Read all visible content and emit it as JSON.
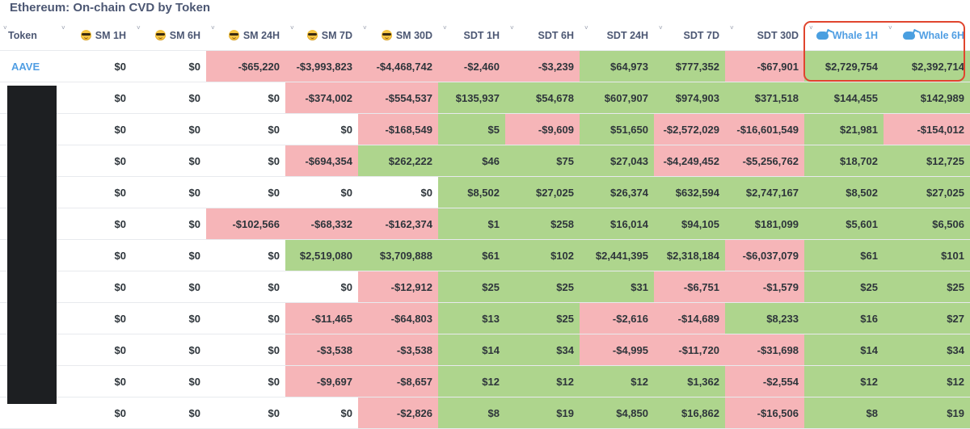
{
  "title": "Ethereum: On-chain CVD by Token",
  "colors": {
    "positive": "#aed58d",
    "negative": "#f6b5b8",
    "link": "#509ee3",
    "highlight": "#e0452e"
  },
  "columns": [
    {
      "label": "Token",
      "icon": ""
    },
    {
      "label": "SM 1H",
      "icon": "smart-money-face-icon"
    },
    {
      "label": "SM 6H",
      "icon": "smart-money-face-icon"
    },
    {
      "label": "SM 24H",
      "icon": "smart-money-face-icon"
    },
    {
      "label": "SM 7D",
      "icon": "smart-money-face-icon"
    },
    {
      "label": "SM 30D",
      "icon": "smart-money-face-icon"
    },
    {
      "label": "SDT 1H",
      "icon": ""
    },
    {
      "label": "SDT 6H",
      "icon": ""
    },
    {
      "label": "SDT 24H",
      "icon": ""
    },
    {
      "label": "SDT 7D",
      "icon": ""
    },
    {
      "label": "SDT 30D",
      "icon": ""
    },
    {
      "label": "Whale 1H",
      "icon": "whale-icon"
    },
    {
      "label": "Whale 6H",
      "icon": "whale-icon"
    }
  ],
  "rows": [
    {
      "token": "AAVE",
      "cells": [
        {
          "v": "$0"
        },
        {
          "v": "$0"
        },
        {
          "v": "-$65,220",
          "c": "neg"
        },
        {
          "v": "-$3,993,823",
          "c": "neg"
        },
        {
          "v": "-$4,468,742",
          "c": "neg"
        },
        {
          "v": "-$2,460",
          "c": "neg"
        },
        {
          "v": "-$3,239",
          "c": "neg"
        },
        {
          "v": "$64,973",
          "c": "pos"
        },
        {
          "v": "$777,352",
          "c": "pos"
        },
        {
          "v": "-$67,901",
          "c": "neg"
        },
        {
          "v": "$2,729,754",
          "c": "pos"
        },
        {
          "v": "$2,392,714",
          "c": "pos"
        }
      ]
    },
    {
      "token": "",
      "cells": [
        {
          "v": "$0"
        },
        {
          "v": "$0"
        },
        {
          "v": "$0"
        },
        {
          "v": "-$374,002",
          "c": "neg"
        },
        {
          "v": "-$554,537",
          "c": "neg"
        },
        {
          "v": "$135,937",
          "c": "pos"
        },
        {
          "v": "$54,678",
          "c": "pos"
        },
        {
          "v": "$607,907",
          "c": "pos"
        },
        {
          "v": "$974,903",
          "c": "pos"
        },
        {
          "v": "$371,518",
          "c": "pos"
        },
        {
          "v": "$144,455",
          "c": "pos"
        },
        {
          "v": "$142,989",
          "c": "pos"
        }
      ]
    },
    {
      "token": "",
      "cells": [
        {
          "v": "$0"
        },
        {
          "v": "$0"
        },
        {
          "v": "$0"
        },
        {
          "v": "$0"
        },
        {
          "v": "-$168,549",
          "c": "neg"
        },
        {
          "v": "$5",
          "c": "pos"
        },
        {
          "v": "-$9,609",
          "c": "neg"
        },
        {
          "v": "$51,650",
          "c": "pos"
        },
        {
          "v": "-$2,572,029",
          "c": "neg"
        },
        {
          "v": "-$16,601,549",
          "c": "neg"
        },
        {
          "v": "$21,981",
          "c": "pos"
        },
        {
          "v": "-$154,012",
          "c": "neg"
        }
      ]
    },
    {
      "token": "",
      "cells": [
        {
          "v": "$0"
        },
        {
          "v": "$0"
        },
        {
          "v": "$0"
        },
        {
          "v": "-$694,354",
          "c": "neg"
        },
        {
          "v": "$262,222",
          "c": "pos"
        },
        {
          "v": "$46",
          "c": "pos"
        },
        {
          "v": "$75",
          "c": "pos"
        },
        {
          "v": "$27,043",
          "c": "pos"
        },
        {
          "v": "-$4,249,452",
          "c": "neg"
        },
        {
          "v": "-$5,256,762",
          "c": "neg"
        },
        {
          "v": "$18,702",
          "c": "pos"
        },
        {
          "v": "$12,725",
          "c": "pos"
        }
      ]
    },
    {
      "token": "",
      "cells": [
        {
          "v": "$0"
        },
        {
          "v": "$0"
        },
        {
          "v": "$0"
        },
        {
          "v": "$0"
        },
        {
          "v": "$0"
        },
        {
          "v": "$8,502",
          "c": "pos"
        },
        {
          "v": "$27,025",
          "c": "pos"
        },
        {
          "v": "$26,374",
          "c": "pos"
        },
        {
          "v": "$632,594",
          "c": "pos"
        },
        {
          "v": "$2,747,167",
          "c": "pos"
        },
        {
          "v": "$8,502",
          "c": "pos"
        },
        {
          "v": "$27,025",
          "c": "pos"
        }
      ]
    },
    {
      "token": "",
      "cells": [
        {
          "v": "$0"
        },
        {
          "v": "$0"
        },
        {
          "v": "-$102,566",
          "c": "neg"
        },
        {
          "v": "-$68,332",
          "c": "neg"
        },
        {
          "v": "-$162,374",
          "c": "neg"
        },
        {
          "v": "$1",
          "c": "pos"
        },
        {
          "v": "$258",
          "c": "pos"
        },
        {
          "v": "$16,014",
          "c": "pos"
        },
        {
          "v": "$94,105",
          "c": "pos"
        },
        {
          "v": "$181,099",
          "c": "pos"
        },
        {
          "v": "$5,601",
          "c": "pos"
        },
        {
          "v": "$6,506",
          "c": "pos"
        }
      ]
    },
    {
      "token": "",
      "cells": [
        {
          "v": "$0"
        },
        {
          "v": "$0"
        },
        {
          "v": "$0"
        },
        {
          "v": "$2,519,080",
          "c": "pos"
        },
        {
          "v": "$3,709,888",
          "c": "pos"
        },
        {
          "v": "$61",
          "c": "pos"
        },
        {
          "v": "$102",
          "c": "pos"
        },
        {
          "v": "$2,441,395",
          "c": "pos"
        },
        {
          "v": "$2,318,184",
          "c": "pos"
        },
        {
          "v": "-$6,037,079",
          "c": "neg"
        },
        {
          "v": "$61",
          "c": "pos"
        },
        {
          "v": "$101",
          "c": "pos"
        }
      ]
    },
    {
      "token": "",
      "cells": [
        {
          "v": "$0"
        },
        {
          "v": "$0"
        },
        {
          "v": "$0"
        },
        {
          "v": "$0"
        },
        {
          "v": "-$12,912",
          "c": "neg"
        },
        {
          "v": "$25",
          "c": "pos"
        },
        {
          "v": "$25",
          "c": "pos"
        },
        {
          "v": "$31",
          "c": "pos"
        },
        {
          "v": "-$6,751",
          "c": "neg"
        },
        {
          "v": "-$1,579",
          "c": "neg"
        },
        {
          "v": "$25",
          "c": "pos"
        },
        {
          "v": "$25",
          "c": "pos"
        }
      ]
    },
    {
      "token": "",
      "cells": [
        {
          "v": "$0"
        },
        {
          "v": "$0"
        },
        {
          "v": "$0"
        },
        {
          "v": "-$11,465",
          "c": "neg"
        },
        {
          "v": "-$64,803",
          "c": "neg"
        },
        {
          "v": "$13",
          "c": "pos"
        },
        {
          "v": "$25",
          "c": "pos"
        },
        {
          "v": "-$2,616",
          "c": "neg"
        },
        {
          "v": "-$14,689",
          "c": "neg"
        },
        {
          "v": "$8,233",
          "c": "pos"
        },
        {
          "v": "$16",
          "c": "pos"
        },
        {
          "v": "$27",
          "c": "pos"
        }
      ]
    },
    {
      "token": "",
      "cells": [
        {
          "v": "$0"
        },
        {
          "v": "$0"
        },
        {
          "v": "$0"
        },
        {
          "v": "-$3,538",
          "c": "neg"
        },
        {
          "v": "-$3,538",
          "c": "neg"
        },
        {
          "v": "$14",
          "c": "pos"
        },
        {
          "v": "$34",
          "c": "pos"
        },
        {
          "v": "-$4,995",
          "c": "neg"
        },
        {
          "v": "-$11,720",
          "c": "neg"
        },
        {
          "v": "-$31,698",
          "c": "neg"
        },
        {
          "v": "$14",
          "c": "pos"
        },
        {
          "v": "$34",
          "c": "pos"
        }
      ]
    },
    {
      "token": "",
      "cells": [
        {
          "v": "$0"
        },
        {
          "v": "$0"
        },
        {
          "v": "$0"
        },
        {
          "v": "-$9,697",
          "c": "neg"
        },
        {
          "v": "-$8,657",
          "c": "neg"
        },
        {
          "v": "$12",
          "c": "pos"
        },
        {
          "v": "$12",
          "c": "pos"
        },
        {
          "v": "$12",
          "c": "pos"
        },
        {
          "v": "$1,362",
          "c": "pos"
        },
        {
          "v": "-$2,554",
          "c": "neg"
        },
        {
          "v": "$12",
          "c": "pos"
        },
        {
          "v": "$12",
          "c": "pos"
        }
      ]
    },
    {
      "token": "",
      "cells": [
        {
          "v": "$0"
        },
        {
          "v": "$0"
        },
        {
          "v": "$0"
        },
        {
          "v": "$0"
        },
        {
          "v": "-$2,826",
          "c": "neg"
        },
        {
          "v": "$8",
          "c": "pos"
        },
        {
          "v": "$19",
          "c": "pos"
        },
        {
          "v": "$4,850",
          "c": "pos"
        },
        {
          "v": "$16,862",
          "c": "pos"
        },
        {
          "v": "-$16,506",
          "c": "neg"
        },
        {
          "v": "$8",
          "c": "pos"
        },
        {
          "v": "$19",
          "c": "pos"
        }
      ]
    }
  ]
}
